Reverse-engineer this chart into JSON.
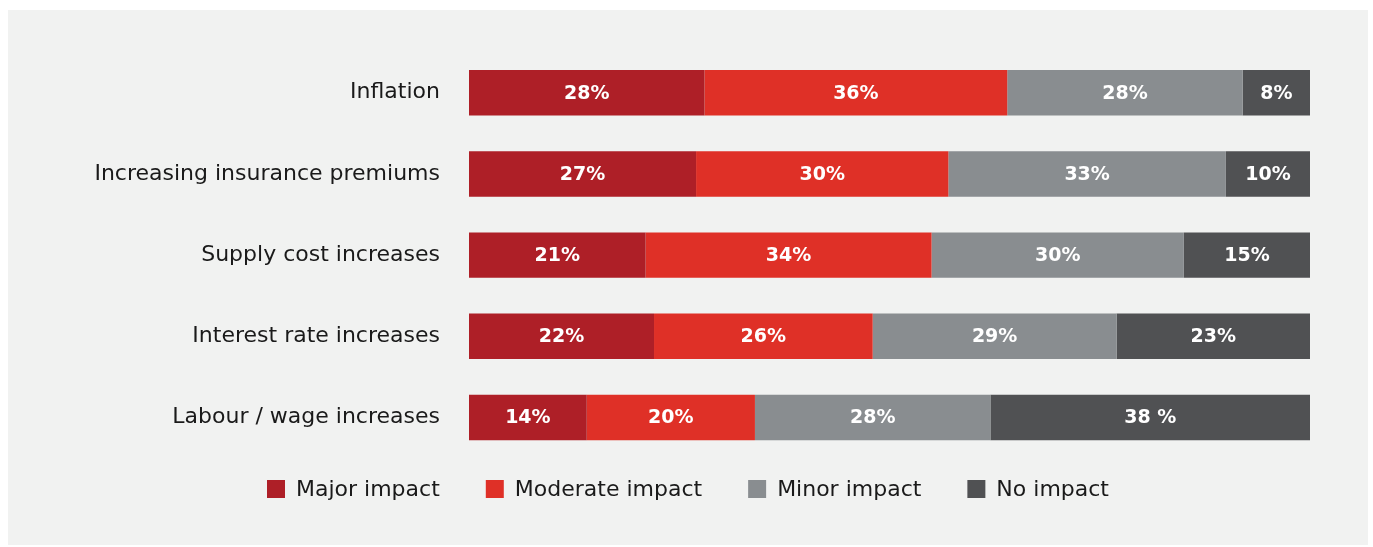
{
  "chart_data": {
    "type": "bar",
    "orientation": "horizontal",
    "stacked": true,
    "categories": [
      "Inflation",
      "Increasing insurance premiums",
      "Supply cost increases",
      "Interest rate increases",
      "Labour / wage increases"
    ],
    "series": [
      {
        "name": "Major impact",
        "color": "#ae1f27",
        "values": [
          28,
          27,
          21,
          22,
          14
        ],
        "value_labels": [
          "28%",
          "27%",
          "21%",
          "22%",
          "14%"
        ]
      },
      {
        "name": "Moderate impact",
        "color": "#df3027",
        "values": [
          36,
          30,
          34,
          26,
          20
        ],
        "value_labels": [
          "36%",
          "30%",
          "34%",
          "26%",
          "20%"
        ]
      },
      {
        "name": "Minor impact",
        "color": "#898d90",
        "values": [
          28,
          33,
          30,
          29,
          28
        ],
        "value_labels": [
          "28%",
          "33%",
          "30%",
          "29%",
          "28%"
        ]
      },
      {
        "name": "No impact",
        "color": "#505153",
        "values": [
          8,
          10,
          15,
          23,
          38
        ],
        "value_labels": [
          "8%",
          "10%",
          "15%",
          "23%",
          "38 %"
        ]
      }
    ],
    "xlim": [
      0,
      100
    ],
    "tick_labels": "y",
    "grid": false,
    "legend": "bottom"
  }
}
